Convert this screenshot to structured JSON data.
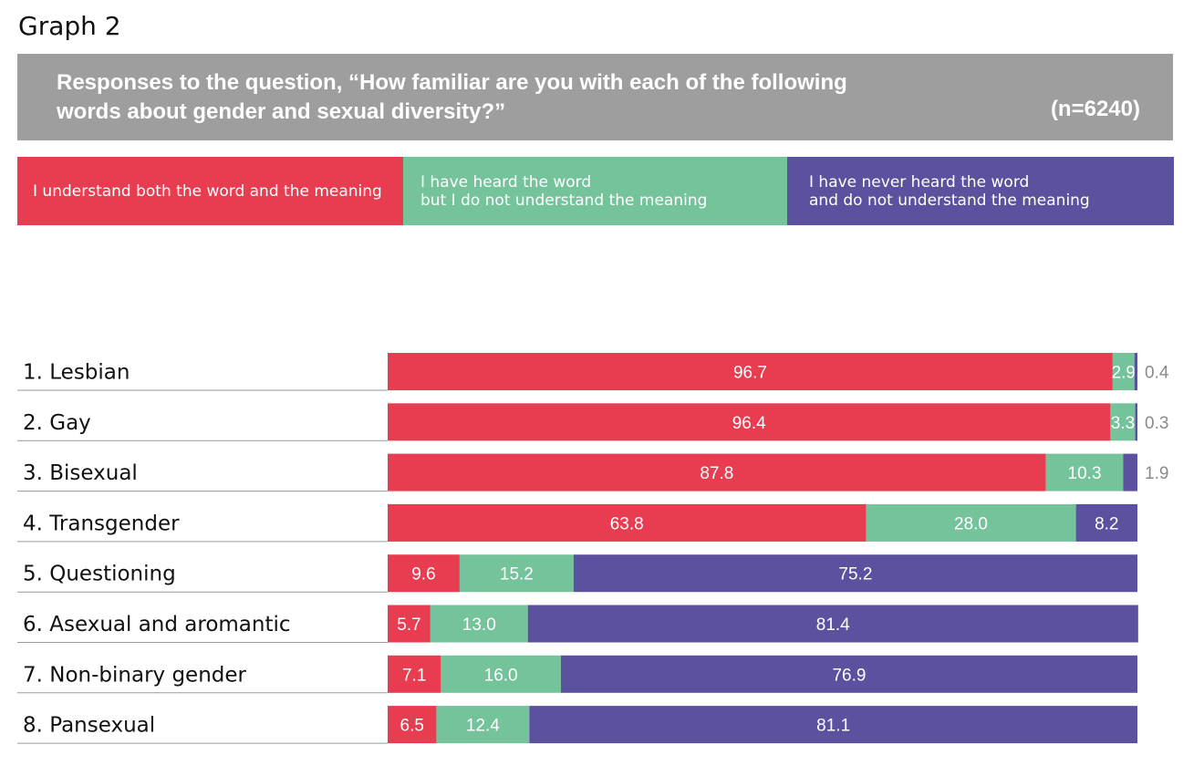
{
  "header": {
    "graph_label": "Graph 2",
    "banner_title": "Responses to the question, “How familiar are you with each of the following\nwords about gender and sexual diversity?”",
    "sample_size": "(n=6240)"
  },
  "colors": {
    "banner": "#9e9e9e",
    "understand": "#e83c50",
    "heard": "#74c39a",
    "never": "#5b529f"
  },
  "chart_data": {
    "type": "bar",
    "orientation": "horizontal",
    "stacked": true,
    "xlim": [
      0,
      100
    ],
    "grid": false,
    "legend_position": "top",
    "categories": [
      "1. Lesbian",
      "2. Gay",
      "3. Bisexual",
      "4. Transgender",
      "5. Questioning",
      "6. Asexual and aromantic",
      "7. Non-binary gender",
      "8. Pansexual"
    ],
    "series": [
      {
        "name": "I understand both the word and the meaning",
        "color": "#e83c50",
        "values": [
          96.7,
          96.4,
          87.8,
          63.8,
          9.6,
          5.7,
          7.1,
          6.5
        ],
        "labels": [
          "96.7",
          "96.4",
          "87.8",
          "63.8",
          "9.6",
          "5.7",
          "7.1",
          "6.5"
        ]
      },
      {
        "name": "I have heard the word\nbut I do not understand the meaning",
        "color": "#74c39a",
        "values": [
          2.9,
          3.3,
          10.3,
          28.0,
          15.2,
          13.0,
          16.0,
          12.4
        ],
        "labels": [
          "2.9",
          "3.3",
          "10.3",
          "28.0",
          "15.2",
          "13.0",
          "16.0",
          "12.4"
        ]
      },
      {
        "name": "I have never heard the word\nand do not understand the meaning",
        "color": "#5b529f",
        "values": [
          0.4,
          0.3,
          1.9,
          8.2,
          75.2,
          81.4,
          76.9,
          81.1
        ],
        "labels": [
          "0.4",
          "0.3",
          "1.9",
          "8.2",
          "75.2",
          "81.4",
          "76.9",
          "81.1"
        ]
      }
    ]
  }
}
